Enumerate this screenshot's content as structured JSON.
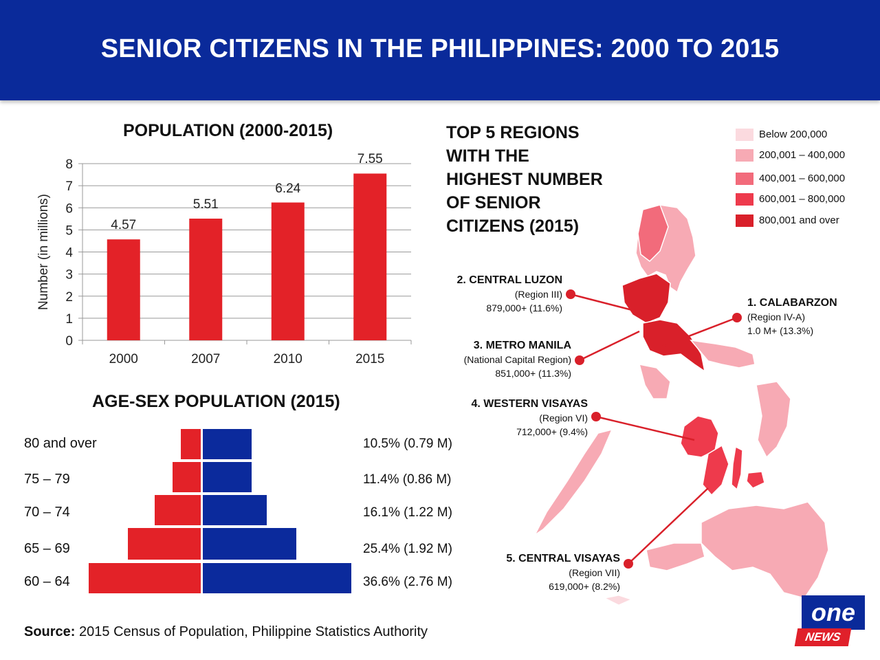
{
  "header": {
    "title": "SENIOR CITIZENS IN THE PHILIPPINES: 2000 TO 2015"
  },
  "colors": {
    "header_bg": "#0a2a9a",
    "bar_red": "#e32228",
    "bar_blue": "#0b2a9c"
  },
  "chart_data": [
    {
      "type": "bar",
      "title": "POPULATION (2000-2015)",
      "categories": [
        "2000",
        "2007",
        "2010",
        "2015"
      ],
      "values": [
        4.57,
        5.51,
        6.24,
        7.55
      ],
      "value_labels": [
        "4.57",
        "5.51",
        "6.24",
        "7.55"
      ],
      "ylabel": "Number (in millions)",
      "xlabel": "",
      "ylim": [
        0,
        8
      ],
      "yticks": [
        "0",
        "1",
        "2",
        "3",
        "4",
        "5",
        "6",
        "7",
        "8"
      ],
      "grid": true
    },
    {
      "type": "bar",
      "title": "AGE-SEX POPULATION (2015)",
      "orientation": "horizontal-pyramid",
      "categories": [
        "80 and over",
        "75 – 79",
        "70 – 74",
        "65 – 69",
        "60 – 64"
      ],
      "share_percent": [
        10.5,
        11.4,
        16.1,
        25.4,
        36.6
      ],
      "value_labels": [
        "10.5% (0.79 M)",
        "11.4% (0.86 M)",
        "16.1% (1.22 M)",
        "25.4% (1.92 M)",
        "36.6% (2.76 M)"
      ],
      "male_relative": [
        0.18,
        0.25,
        0.41,
        0.65,
        1.0
      ],
      "female_relative": [
        0.33,
        0.33,
        0.43,
        0.63,
        1.0
      ]
    }
  ],
  "map": {
    "title": "TOP 5 REGIONS WITH THE HIGHEST NUMBER OF SENIOR CITIZENS (2015)",
    "title_lines": [
      "TOP 5 REGIONS",
      "WITH THE",
      "HIGHEST NUMBER",
      "OF SENIOR",
      "CITIZENS (2015)"
    ],
    "legend": [
      {
        "label": "Below 200,000",
        "color": "#fbdadf"
      },
      {
        "label": "200,001 – 400,000",
        "color": "#f7aab4"
      },
      {
        "label": "400,001 – 600,000",
        "color": "#f26b7b"
      },
      {
        "label": "600,001 – 800,000",
        "color": "#ee3a4c"
      },
      {
        "label": "800,001 and over",
        "color": "#d9202a"
      }
    ],
    "regions": [
      {
        "name": "2. CENTRAL LUZON",
        "code": "(Region III)",
        "value": "879,000+ (11.6%)"
      },
      {
        "name": "1. CALABARZON",
        "code": "(Region IV-A)",
        "value": "1.0 M+ (13.3%)"
      },
      {
        "name": "3. METRO MANILA",
        "code": "(National Capital Region)",
        "value": "851,000+ (11.3%)"
      },
      {
        "name": "4. WESTERN VISAYAS",
        "code": "(Region VI)",
        "value": "712,000+ (9.4%)"
      },
      {
        "name": "5. CENTRAL VISAYAS",
        "code": "(Region VII)",
        "value": "619,000+ (8.2%)"
      }
    ]
  },
  "source": {
    "label": "Source:",
    "text": " 2015 Census of Population, Philippine Statistics Authority"
  },
  "logo": {
    "top": "one",
    "bottom": "NEWS"
  }
}
